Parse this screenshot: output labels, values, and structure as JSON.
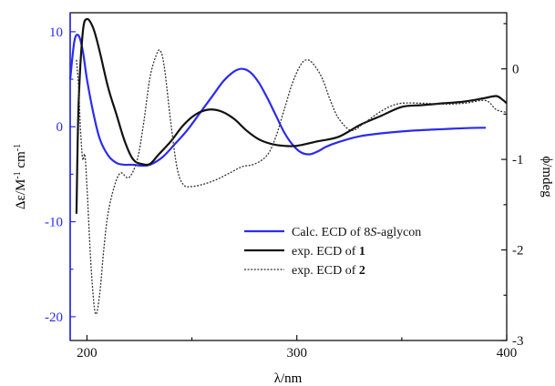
{
  "chart_data": {
    "type": "line",
    "x_axis": {
      "label": "λ/nm",
      "range": [
        192,
        400
      ],
      "ticks": [
        200,
        300,
        400
      ],
      "tick_labels": [
        "200",
        "300",
        "400"
      ]
    },
    "y_left_axis": {
      "label_parts": [
        "Δε/M",
        "-1",
        " cm",
        "-1"
      ],
      "range": [
        -22.5,
        12
      ],
      "ticks": [
        -20,
        -10,
        0,
        10
      ],
      "tick_labels": [
        "-20",
        "-10",
        "0",
        "10"
      ],
      "color": "#2b2bf0"
    },
    "y_right_axis": {
      "label": "ϕ/mdeg",
      "range": [
        -3.0,
        0.62
      ],
      "ticks": [
        -3,
        -2,
        -1,
        0
      ],
      "tick_labels": [
        "-3",
        "-2",
        "-1",
        "0"
      ],
      "color": "#111111"
    },
    "legend": {
      "placement": "lower-right",
      "entries": [
        {
          "parts": [
            {
              "t": "Calc. ECD of 8",
              "s": ""
            },
            {
              "t": "S",
              "s": "italic"
            },
            {
              "t": "-aglycon",
              "s": ""
            }
          ],
          "series": 0
        },
        {
          "parts": [
            {
              "t": "exp. ECD of ",
              "s": ""
            },
            {
              "t": "1",
              "s": "bold"
            }
          ],
          "series": 1
        },
        {
          "parts": [
            {
              "t": "exp. ECD of ",
              "s": ""
            },
            {
              "t": "2",
              "s": "bold"
            }
          ],
          "series": 2
        }
      ]
    },
    "series": [
      {
        "name": "Calc. ECD of 8S-aglycon",
        "axis": "left",
        "color": "#2b2bf0",
        "stroke_width": 2.2,
        "dash": "",
        "x": [
          192,
          194,
          196,
          198,
          200,
          203,
          206,
          210,
          214,
          218,
          222,
          226,
          230,
          236,
          242,
          248,
          254,
          260,
          265,
          270,
          274,
          278,
          282,
          286,
          290,
          294,
          298,
          302,
          306,
          310,
          314,
          320,
          330,
          340,
          350,
          360,
          370,
          380,
          390
        ],
        "y": [
          5,
          9,
          9.6,
          8,
          5,
          1.5,
          -1.2,
          -3,
          -3.8,
          -4,
          -4,
          -4.1,
          -4,
          -3.2,
          -1.8,
          -0.3,
          1.5,
          3.3,
          4.8,
          5.8,
          6.1,
          5.7,
          4.6,
          3,
          1.2,
          -0.6,
          -1.9,
          -2.7,
          -2.9,
          -2.6,
          -2.1,
          -1.6,
          -1,
          -0.7,
          -0.5,
          -0.35,
          -0.25,
          -0.15,
          -0.1
        ]
      },
      {
        "name": "exp. ECD of 1",
        "axis": "right",
        "color": "#111111",
        "stroke_width": 2.2,
        "dash": "",
        "x": [
          195,
          196,
          198,
          200,
          203,
          206,
          210,
          214,
          218,
          222,
          226,
          230,
          234,
          240,
          246,
          252,
          258,
          264,
          270,
          276,
          282,
          288,
          294,
          300,
          310,
          320,
          330,
          340,
          350,
          360,
          370,
          380,
          390,
          395,
          398,
          400
        ],
        "y": [
          -1.6,
          -0.4,
          0.4,
          0.55,
          0.45,
          0.2,
          -0.2,
          -0.5,
          -0.8,
          -1.0,
          -1.05,
          -1.05,
          -0.95,
          -0.8,
          -0.62,
          -0.5,
          -0.45,
          -0.47,
          -0.55,
          -0.68,
          -0.78,
          -0.83,
          -0.85,
          -0.85,
          -0.8,
          -0.75,
          -0.62,
          -0.52,
          -0.42,
          -0.4,
          -0.38,
          -0.36,
          -0.32,
          -0.3,
          -0.34,
          -0.38
        ]
      },
      {
        "name": "exp. ECD of 2",
        "axis": "right",
        "color": "#333333",
        "stroke_width": 1.3,
        "dash": "2,1.6",
        "x": [
          195,
          196,
          197,
          198,
          199,
          200,
          202,
          204,
          206,
          208,
          210,
          213,
          216,
          220,
          224,
          227,
          230,
          233,
          235,
          237,
          240,
          243,
          246,
          250,
          256,
          262,
          268,
          274,
          280,
          286,
          290,
          294,
          298,
          302,
          305,
          308,
          312,
          316,
          320,
          326,
          332,
          338,
          344,
          350,
          360,
          370,
          380,
          390,
          395,
          400
        ],
        "y": [
          0.1,
          -0.2,
          -0.7,
          -1.0,
          -0.95,
          -1.3,
          -2.2,
          -2.7,
          -2.5,
          -2.0,
          -1.6,
          -1.3,
          -1.15,
          -1.2,
          -1.0,
          -0.6,
          -0.1,
          0.15,
          0.2,
          0.0,
          -0.6,
          -1.1,
          -1.28,
          -1.3,
          -1.27,
          -1.22,
          -1.15,
          -1.08,
          -1.05,
          -0.95,
          -0.75,
          -0.45,
          -0.15,
          0.05,
          0.1,
          0.05,
          -0.1,
          -0.35,
          -0.55,
          -0.68,
          -0.6,
          -0.5,
          -0.42,
          -0.38,
          -0.38,
          -0.39,
          -0.38,
          -0.35,
          -0.45,
          -0.48
        ]
      }
    ]
  }
}
